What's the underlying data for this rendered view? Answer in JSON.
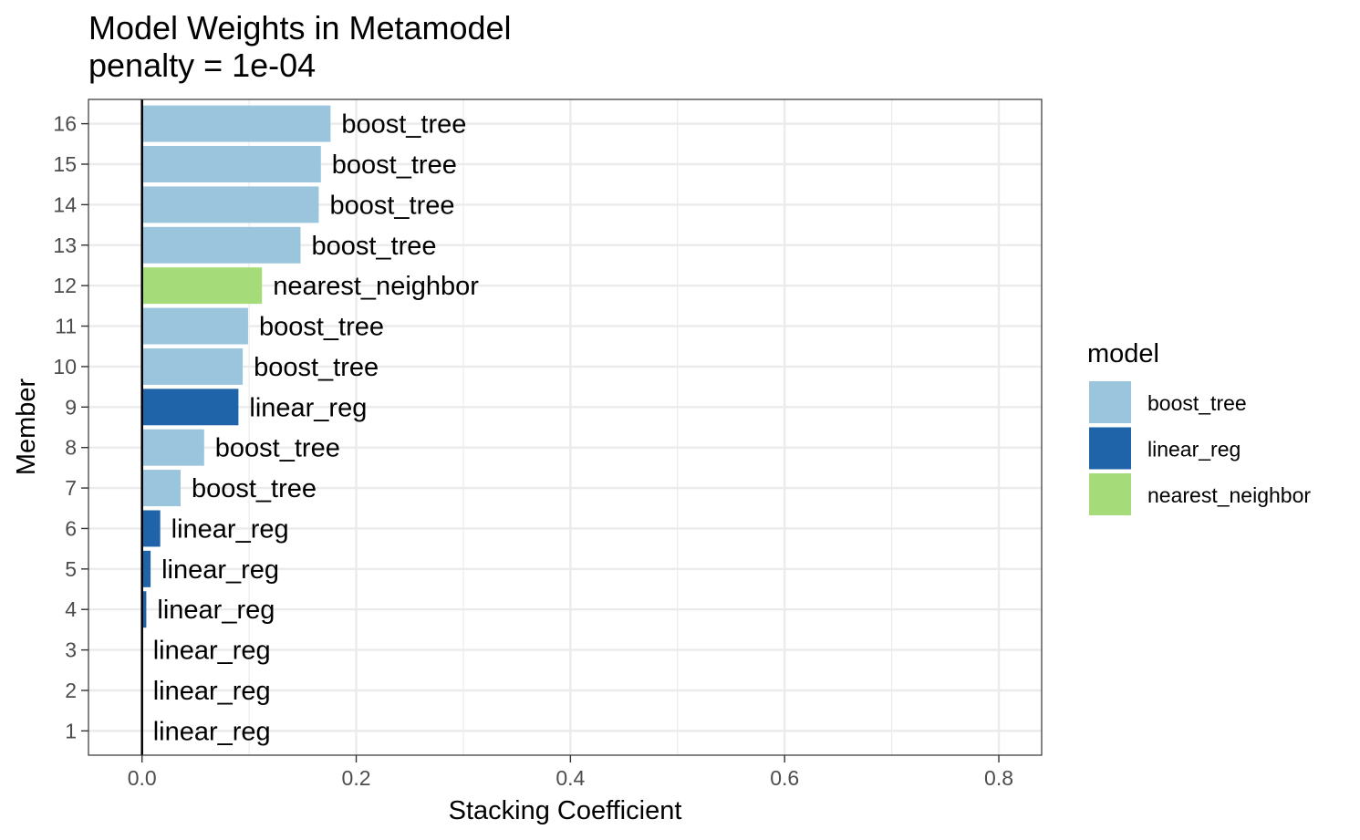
{
  "chart_data": {
    "type": "bar",
    "orientation": "horizontal",
    "title": "Model Weights in Metamodel",
    "subtitle": "penalty = 1e-04",
    "xlabel": "Stacking Coefficient",
    "ylabel": "Member",
    "xlim": [
      -0.05,
      0.84
    ],
    "x_ticks": [
      0.0,
      0.2,
      0.4,
      0.6,
      0.8
    ],
    "x_tick_labels": [
      "0.0",
      "0.2",
      "0.4",
      "0.6",
      "0.8"
    ],
    "grid": true,
    "legend": {
      "title": "model",
      "placement": "right",
      "entries": [
        {
          "name": "boost_tree",
          "color": "#9ac5dd"
        },
        {
          "name": "linear_reg",
          "color": "#1f64a8"
        },
        {
          "name": "nearest_neighbor",
          "color": "#a5db78"
        }
      ]
    },
    "bars": [
      {
        "member": "1",
        "value": 0.0,
        "model": "linear_reg"
      },
      {
        "member": "2",
        "value": 0.0,
        "model": "linear_reg"
      },
      {
        "member": "3",
        "value": 0.0,
        "model": "linear_reg"
      },
      {
        "member": "4",
        "value": 0.004,
        "model": "linear_reg"
      },
      {
        "member": "5",
        "value": 0.008,
        "model": "linear_reg"
      },
      {
        "member": "6",
        "value": 0.017,
        "model": "linear_reg"
      },
      {
        "member": "7",
        "value": 0.036,
        "model": "boost_tree"
      },
      {
        "member": "8",
        "value": 0.058,
        "model": "boost_tree"
      },
      {
        "member": "9",
        "value": 0.09,
        "model": "linear_reg"
      },
      {
        "member": "10",
        "value": 0.094,
        "model": "boost_tree"
      },
      {
        "member": "11",
        "value": 0.099,
        "model": "boost_tree"
      },
      {
        "member": "12",
        "value": 0.112,
        "model": "nearest_neighbor"
      },
      {
        "member": "13",
        "value": 0.148,
        "model": "boost_tree"
      },
      {
        "member": "14",
        "value": 0.165,
        "model": "boost_tree"
      },
      {
        "member": "15",
        "value": 0.167,
        "model": "boost_tree"
      },
      {
        "member": "16",
        "value": 0.176,
        "model": "boost_tree"
      }
    ]
  }
}
